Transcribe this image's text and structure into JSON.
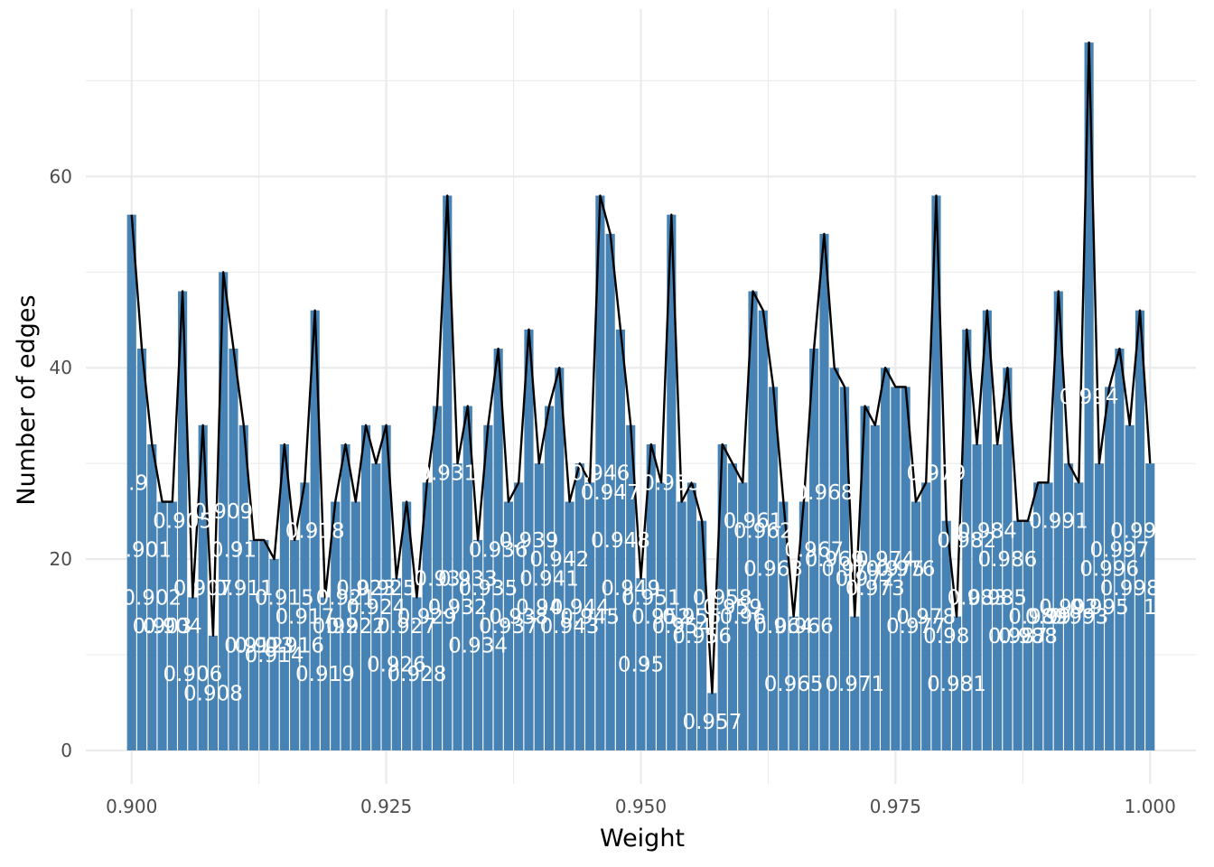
{
  "chart_data": {
    "type": "bar",
    "xlabel": "Weight",
    "ylabel": "Number of edges",
    "xlim": [
      0.8955,
      1.0045
    ],
    "ylim": [
      -3.5,
      77.5
    ],
    "x_ticks": [
      {
        "value": 0.9,
        "label": "0.900"
      },
      {
        "value": 0.925,
        "label": "0.925"
      },
      {
        "value": 0.95,
        "label": "0.950"
      },
      {
        "value": 0.975,
        "label": "0.975"
      },
      {
        "value": 1.0,
        "label": "1.000"
      }
    ],
    "y_ticks": [
      {
        "value": 0,
        "label": "0"
      },
      {
        "value": 20,
        "label": "20"
      },
      {
        "value": 40,
        "label": "40"
      },
      {
        "value": 60,
        "label": "60"
      }
    ],
    "grid": true,
    "colors": {
      "bar": "#4682b4",
      "line": "#000000",
      "label": "#ffffff",
      "grid": "#ebebeb"
    },
    "x": [
      0.9,
      0.901,
      0.902,
      0.903,
      0.904,
      0.905,
      0.906,
      0.907,
      0.908,
      0.909,
      0.91,
      0.911,
      0.912,
      0.913,
      0.914,
      0.915,
      0.916,
      0.917,
      0.918,
      0.919,
      0.92,
      0.921,
      0.922,
      0.923,
      0.924,
      0.925,
      0.926,
      0.927,
      0.928,
      0.929,
      0.93,
      0.931,
      0.932,
      0.933,
      0.934,
      0.935,
      0.936,
      0.937,
      0.938,
      0.939,
      0.94,
      0.941,
      0.942,
      0.943,
      0.944,
      0.945,
      0.946,
      0.947,
      0.948,
      0.949,
      0.95,
      0.951,
      0.952,
      0.953,
      0.954,
      0.955,
      0.956,
      0.957,
      0.958,
      0.959,
      0.96,
      0.961,
      0.962,
      0.963,
      0.964,
      0.965,
      0.966,
      0.967,
      0.968,
      0.969,
      0.97,
      0.971,
      0.972,
      0.973,
      0.974,
      0.975,
      0.976,
      0.977,
      0.978,
      0.979,
      0.98,
      0.981,
      0.982,
      0.983,
      0.984,
      0.985,
      0.986,
      0.987,
      0.988,
      0.989,
      0.99,
      0.991,
      0.992,
      0.993,
      0.994,
      0.995,
      0.996,
      0.997,
      0.998,
      0.999,
      1.0
    ],
    "values": [
      56,
      42,
      32,
      26,
      26,
      48,
      16,
      34,
      12,
      50,
      42,
      34,
      22,
      22,
      20,
      32,
      22,
      28,
      46,
      16,
      26,
      32,
      26,
      34,
      30,
      34,
      18,
      26,
      16,
      28,
      36,
      58,
      30,
      36,
      22,
      34,
      42,
      26,
      28,
      44,
      30,
      36,
      40,
      26,
      30,
      28,
      58,
      54,
      44,
      34,
      18,
      32,
      28,
      56,
      26,
      28,
      24,
      6,
      32,
      30,
      28,
      48,
      46,
      38,
      26,
      14,
      26,
      42,
      54,
      40,
      38,
      14,
      36,
      34,
      40,
      38,
      38,
      26,
      28,
      58,
      24,
      14,
      44,
      32,
      46,
      32,
      40,
      24,
      24,
      28,
      28,
      48,
      30,
      28,
      74,
      30,
      38,
      42,
      34,
      46,
      30
    ],
    "labels": [
      "0.9",
      "0.901",
      "0.902",
      "0.903",
      "0.904",
      "0.905",
      "0.906",
      "0.907",
      "0.908",
      "0.909",
      "0.91",
      "0.911",
      "0.912",
      "0.913",
      "0.914",
      "0.915",
      "0.916",
      "0.917",
      "0.918",
      "0.919",
      "0.92",
      "0.921",
      "0.922",
      "0.923",
      "0.924",
      "0.925",
      "0.926",
      "0.927",
      "0.928",
      "0.929",
      "0.93",
      "0.931",
      "0.932",
      "0.933",
      "0.934",
      "0.935",
      "0.936",
      "0.937",
      "0.938",
      "0.939",
      "0.94",
      "0.941",
      "0.942",
      "0.943",
      "0.944",
      "0.945",
      "0.946",
      "0.947",
      "0.948",
      "0.949",
      "0.95",
      "0.951",
      "0.952",
      "0.953",
      "0.954",
      "0.955",
      "0.956",
      "0.957",
      "0.958",
      "0.959",
      "0.96",
      "0.961",
      "0.962",
      "0.963",
      "0.964",
      "0.965",
      "0.966",
      "0.967",
      "0.968",
      "0.969",
      "0.97",
      "0.971",
      "0.972",
      "0.973",
      "0.974",
      "0.975",
      "0.976",
      "0.977",
      "0.978",
      "0.979",
      "0.98",
      "0.981",
      "0.982",
      "0.983",
      "0.984",
      "0.985",
      "0.986",
      "0.987",
      "0.988",
      "0.989",
      "0.99",
      "0.991",
      "0.992",
      "0.993",
      "0.994",
      "0.995",
      "0.996",
      "0.997",
      "0.998",
      "0.999",
      "1"
    ]
  }
}
